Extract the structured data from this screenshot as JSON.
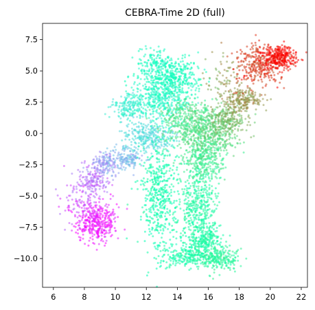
{
  "chart_data": {
    "type": "scatter",
    "title": "CEBRA-Time 2D (full)",
    "xlabel": "",
    "ylabel": "",
    "xlim": [
      5.3,
      22.4
    ],
    "ylim": [
      -12.3,
      8.8
    ],
    "xticks": [
      6,
      8,
      10,
      12,
      14,
      16,
      18,
      20,
      22
    ],
    "yticks": [
      7.5,
      5.0,
      2.5,
      0.0,
      -2.5,
      -5.0,
      -7.5,
      -10.0
    ],
    "ytick_labels": [
      "7.5",
      "5.0",
      "2.5",
      "0.0",
      "−2.5",
      "−5.0",
      "−7.5",
      "−10.0"
    ],
    "grid": false,
    "colormap": "rainbow",
    "point_alpha": 0.55,
    "clusters": [
      {
        "x": 8.8,
        "y": -7.1,
        "sx": 0.65,
        "sy": 0.8,
        "n": 380,
        "c": 0.03
      },
      {
        "x": 7.6,
        "y": -5.6,
        "sx": 0.6,
        "sy": 1.0,
        "n": 90,
        "c": 0.1
      },
      {
        "x": 8.6,
        "y": -3.9,
        "sx": 0.55,
        "sy": 0.7,
        "n": 160,
        "c": 0.14
      },
      {
        "x": 9.3,
        "y": -2.5,
        "sx": 0.5,
        "sy": 0.5,
        "n": 130,
        "c": 0.2
      },
      {
        "x": 10.7,
        "y": -2.0,
        "sx": 0.6,
        "sy": 0.5,
        "n": 170,
        "c": 0.26
      },
      {
        "x": 10.8,
        "y": 2.2,
        "sx": 0.55,
        "sy": 0.5,
        "n": 160,
        "c": 0.38
      },
      {
        "x": 12.2,
        "y": -0.2,
        "sx": 0.9,
        "sy": 0.6,
        "n": 300,
        "c": 0.33
      },
      {
        "x": 13.0,
        "y": 2.8,
        "sx": 1.0,
        "sy": 1.1,
        "n": 450,
        "c": 0.43
      },
      {
        "x": 13.7,
        "y": 4.5,
        "sx": 0.9,
        "sy": 0.7,
        "n": 350,
        "c": 0.47
      },
      {
        "x": 12.9,
        "y": -5.0,
        "sx": 0.6,
        "sy": 2.3,
        "n": 500,
        "c": 0.52
      },
      {
        "x": 14.5,
        "y": -9.9,
        "sx": 0.7,
        "sy": 0.4,
        "n": 160,
        "c": 0.54
      },
      {
        "x": 15.4,
        "y": -5.8,
        "sx": 0.6,
        "sy": 1.8,
        "n": 450,
        "c": 0.56
      },
      {
        "x": 15.7,
        "y": -8.6,
        "sx": 0.6,
        "sy": 0.6,
        "n": 250,
        "c": 0.55
      },
      {
        "x": 16.6,
        "y": -10.0,
        "sx": 0.7,
        "sy": 0.45,
        "n": 250,
        "c": 0.58
      },
      {
        "x": 15.7,
        "y": -2.0,
        "sx": 0.7,
        "sy": 0.9,
        "n": 300,
        "c": 0.62
      },
      {
        "x": 14.8,
        "y": 1.0,
        "sx": 0.9,
        "sy": 0.9,
        "n": 400,
        "c": 0.64
      },
      {
        "x": 16.2,
        "y": 0.0,
        "sx": 0.9,
        "sy": 0.8,
        "n": 350,
        "c": 0.68
      },
      {
        "x": 17.3,
        "y": 1.2,
        "sx": 0.6,
        "sy": 0.6,
        "n": 220,
        "c": 0.74
      },
      {
        "x": 18.2,
        "y": 2.7,
        "sx": 0.6,
        "sy": 0.5,
        "n": 220,
        "c": 0.8
      },
      {
        "x": 17.0,
        "y": 4.2,
        "sx": 0.7,
        "sy": 1.1,
        "n": 80,
        "c": 0.78
      },
      {
        "x": 19.3,
        "y": 5.4,
        "sx": 0.8,
        "sy": 0.8,
        "n": 300,
        "c": 0.92
      },
      {
        "x": 20.6,
        "y": 6.1,
        "sx": 0.55,
        "sy": 0.45,
        "n": 320,
        "c": 0.99
      },
      {
        "x": 12.5,
        "y": 5.6,
        "sx": 0.6,
        "sy": 0.6,
        "n": 120,
        "c": 0.45
      }
    ]
  }
}
